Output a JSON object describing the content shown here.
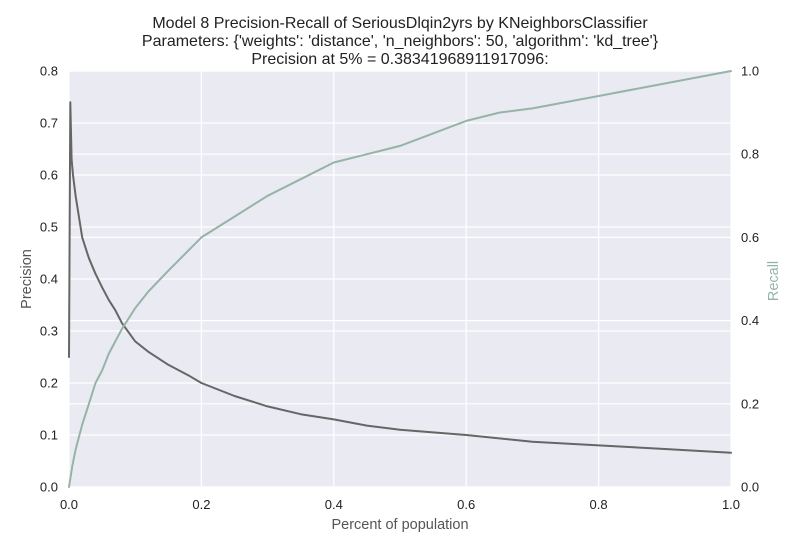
{
  "chart_data": {
    "type": "line",
    "title": [
      "Model 8 Precision-Recall of SeriousDlqin2yrs by KNeighborsClassifier",
      "Parameters: {'weights': 'distance', 'n_neighbors': 50, 'algorithm': 'kd_tree'}",
      "Precision at 5% = 0.38341968911917096:"
    ],
    "xlabel": "Percent of population",
    "ylabel_left": "Precision",
    "ylabel_right": "Recall",
    "xlim": [
      0.0,
      1.0
    ],
    "ylim_left": [
      0.0,
      0.8
    ],
    "ylim_right": [
      0.0,
      1.0
    ],
    "x_ticks": [
      "0.0",
      "0.2",
      "0.4",
      "0.6",
      "0.8",
      "1.0"
    ],
    "y_left_ticks": [
      "0.0",
      "0.1",
      "0.2",
      "0.3",
      "0.4",
      "0.5",
      "0.6",
      "0.7",
      "0.8"
    ],
    "y_right_ticks": [
      "0.0",
      "0.2",
      "0.4",
      "0.6",
      "0.8",
      "1.0"
    ],
    "grid": true,
    "series": [
      {
        "name": "precision",
        "axis": "left",
        "color": "#666666",
        "x": [
          0.0,
          0.002,
          0.004,
          0.006,
          0.01,
          0.015,
          0.02,
          0.03,
          0.04,
          0.05,
          0.06,
          0.07,
          0.08,
          0.1,
          0.12,
          0.15,
          0.18,
          0.2,
          0.25,
          0.3,
          0.35,
          0.4,
          0.45,
          0.5,
          0.6,
          0.7,
          0.8,
          0.9,
          1.0
        ],
        "values": [
          0.25,
          0.74,
          0.63,
          0.6,
          0.56,
          0.52,
          0.48,
          0.44,
          0.41,
          0.384,
          0.36,
          0.34,
          0.315,
          0.28,
          0.26,
          0.235,
          0.215,
          0.2,
          0.175,
          0.155,
          0.14,
          0.13,
          0.118,
          0.11,
          0.1,
          0.087,
          0.08,
          0.073,
          0.066
        ]
      },
      {
        "name": "recall",
        "axis": "right",
        "color": "#96b4a6",
        "x": [
          0.0,
          0.005,
          0.01,
          0.02,
          0.03,
          0.04,
          0.05,
          0.06,
          0.07,
          0.08,
          0.1,
          0.12,
          0.15,
          0.2,
          0.25,
          0.3,
          0.35,
          0.4,
          0.45,
          0.5,
          0.55,
          0.6,
          0.65,
          0.7,
          0.8,
          0.9,
          1.0
        ],
        "values": [
          0.0,
          0.05,
          0.09,
          0.15,
          0.2,
          0.25,
          0.28,
          0.32,
          0.35,
          0.38,
          0.43,
          0.47,
          0.52,
          0.6,
          0.65,
          0.7,
          0.74,
          0.78,
          0.8,
          0.82,
          0.85,
          0.88,
          0.9,
          0.91,
          0.94,
          0.97,
          1.0
        ]
      }
    ]
  }
}
